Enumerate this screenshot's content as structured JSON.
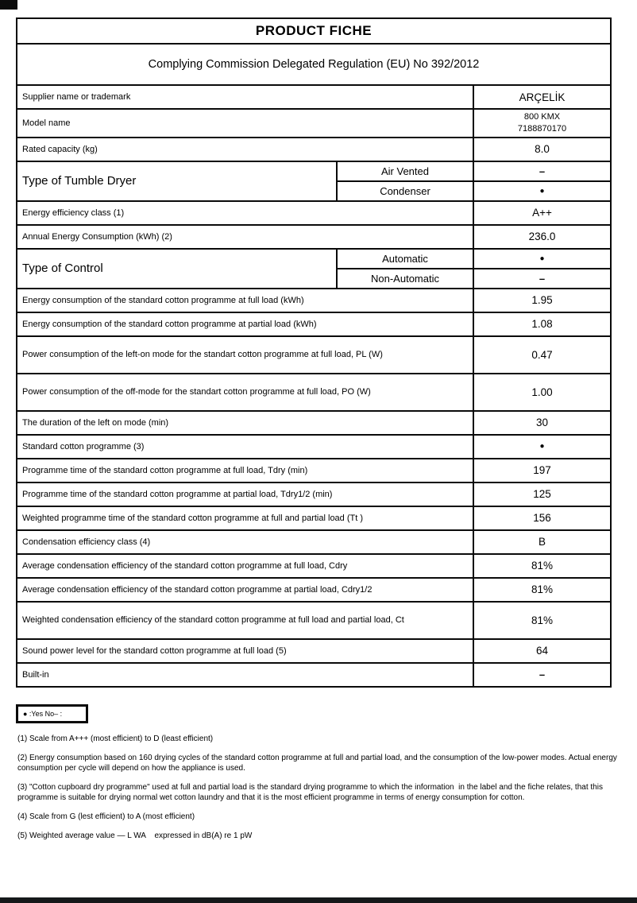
{
  "page": {
    "title": "PRODUCT FICHE",
    "subtitle": "Complying Commission Delegated Regulation (EU) No 392/2012"
  },
  "table": {
    "rows": [
      {
        "label": "Supplier name or trademark",
        "value": "ARÇELİK"
      },
      {
        "label": "Model name",
        "value": "800 KMX\n7188870170"
      },
      {
        "label": "Rated capacity (kg)",
        "value": "8.0"
      },
      {
        "label": "Type of Tumble Dryer",
        "subs": [
          {
            "label": "Air Vented",
            "value": "–"
          },
          {
            "label": "Condenser",
            "value": "●"
          }
        ]
      },
      {
        "label": "Energy efficiency class (1)",
        "value": "A++"
      },
      {
        "label": "Annual Energy Consumption (kWh) (2)",
        "value": "236.0"
      },
      {
        "label": "Type of Control",
        "subs": [
          {
            "label": "Automatic",
            "value": "●"
          },
          {
            "label": "Non-Automatic",
            "value": "–"
          }
        ]
      },
      {
        "label": "Energy consumption of the standard cotton programme at full load (kWh)",
        "value": "1.95"
      },
      {
        "label": "Energy consumption of the standard cotton programme at partial load (kWh)",
        "value": "1.08"
      },
      {
        "label": "Power consumption of the left-on mode for the standart cotton programme at full load, PL (W)",
        "value": "0.47"
      },
      {
        "label": "Power consumption of the off-mode for the standart cotton programme at full load, PO (W)",
        "value": "1.00"
      },
      {
        "label": "The duration of the left on mode (min)",
        "value": "30"
      },
      {
        "label": "Standard cotton programme (3)",
        "value": "●"
      },
      {
        "label": "Programme time of the standard cotton programme at full load, Tdry (min)",
        "value": "197"
      },
      {
        "label": "Programme time of the standard cotton programme at partial load, Tdry1/2 (min)",
        "value": "125"
      },
      {
        "label": "Weighted programme time of the standard cotton programme at full and partial load (Tt )",
        "value": "156"
      },
      {
        "label": "Condensation efficiency class (4)",
        "value": "B"
      },
      {
        "label": "Average condensation efficiency of the standard cotton programme at full load, Cdry",
        "value": "81%"
      },
      {
        "label": "Average condensation efficiency of the standard cotton programme at partial load, Cdry1/2",
        "value": "81%"
      },
      {
        "label": "Weighted condensation efficiency of the standard cotton programme at full load and partial load, Ct",
        "value": "81%"
      },
      {
        "label": "Sound power level for the standard cotton programme at full load (5)",
        "value": "64"
      },
      {
        "label": "Built-in",
        "value": "–"
      }
    ]
  },
  "legend": {
    "text": "● :Yes No– :"
  },
  "footnotes": [
    "(1) Scale from A+++ (most efficient) to D (least efficient)",
    "(2) Energy consumption based on 160 drying cycles of the standard cotton programme at full and partial load, and the consumption of the low-power modes. Actual energy consumption per cycle will depend on how the appliance is used.",
    "(3) \"Cotton cupboard dry programme\" used at full and partial load is the standard drying programme to which the information  in the label and the fiche relates, that this programme is suitable for drying normal wet cotton laundry and that it is the most efficient programme in terms of energy consumption for cotton.",
    "(4) Scale from G (lest efficient) to A (most efficient)",
    "(5) Weighted average value — L WA    expressed in dB(A) re 1 pW"
  ]
}
